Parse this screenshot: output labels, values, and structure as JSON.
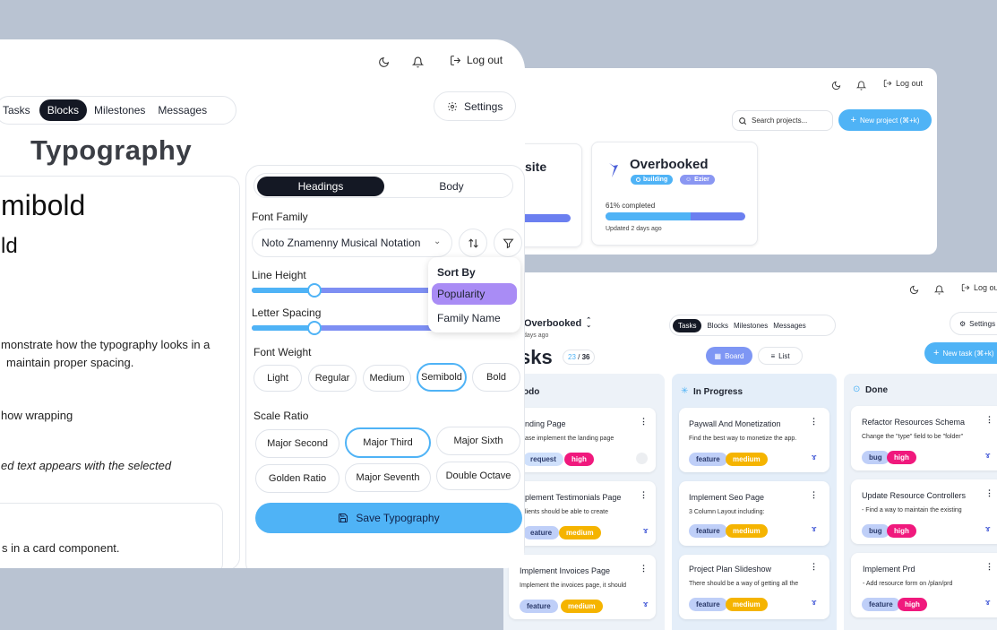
{
  "win3": {
    "header": {
      "logout": "Log out"
    },
    "search": {
      "placeholder": "Search projects..."
    },
    "new_project": "New project (⌘+k)",
    "project_partial_title": "site",
    "project": {
      "title": "Overbooked",
      "status": "building",
      "owner": "Ezier",
      "progress_label": "61% completed",
      "progress": 0.61,
      "updated": "Updated 2 days ago"
    }
  },
  "win2": {
    "header": {
      "logout": "Log out",
      "settings": "Settings"
    },
    "project_name": "Overbooked",
    "project_sub": "days ago",
    "tabs": [
      "Tasks",
      "Blocks",
      "Milestones",
      "Messages"
    ],
    "page_title": "sks",
    "count_done": "23",
    "count_total": "36",
    "views": {
      "board": "Board",
      "list": "List"
    },
    "new_task": "New task (⌘+k)",
    "columns": [
      {
        "title": "odo",
        "cards": [
          {
            "title": "nding Page",
            "desc": "ase implement the landing page",
            "tags": [
              "request",
              "high"
            ]
          },
          {
            "title": "plement Testimonials Page",
            "desc": "lients should be able to create",
            "tags": [
              "eature",
              "medium"
            ]
          },
          {
            "title": "Implement Invoices Page",
            "desc": "Implement the invoices page, it should",
            "tags": [
              "feature",
              "medium"
            ]
          }
        ]
      },
      {
        "title": "In Progress",
        "cards": [
          {
            "title": "Paywall And Monetization",
            "desc": "Find the best way to monetize the app.",
            "tags": [
              "feature",
              "medium"
            ]
          },
          {
            "title": "Implement Seo Page",
            "desc": "3 Column Layout including:",
            "tags": [
              "feature",
              "medium"
            ]
          },
          {
            "title": "Project Plan Slideshow",
            "desc": "There should be a way of getting all the",
            "tags": [
              "feature",
              "medium"
            ]
          }
        ]
      },
      {
        "title": "Done",
        "cards": [
          {
            "title": "Refactor Resources Schema",
            "desc": "Change the \"type\" field to be \"folder\"",
            "tags": [
              "bug",
              "high"
            ]
          },
          {
            "title": "Update Resource Controllers",
            "desc": "- Find a way to maintain the existing",
            "tags": [
              "bug",
              "high"
            ]
          },
          {
            "title": "Implement Prd",
            "desc": "- Add resource form on /plan/prd",
            "tags": [
              "feature",
              "high"
            ]
          }
        ]
      }
    ]
  },
  "win1": {
    "header": {
      "logout": "Log out",
      "settings": "Settings"
    },
    "tabs": [
      "Tasks",
      "Blocks",
      "Milestones",
      "Messages"
    ],
    "active_tab": "Blocks",
    "title": "Typography",
    "preview": {
      "line1": "mibold",
      "line2": "ld",
      "para1a": "monstrate how the typography looks in a",
      "para1b": "maintain proper spacing.",
      "para2": "how wrapping",
      "para3": "ed text appears with the selected",
      "para4": "s in a card component."
    },
    "seg": {
      "headings": "Headings",
      "body": "Body"
    },
    "font_family_label": "Font Family",
    "font_family_value": "Noto Znamenny Musical Notation",
    "line_height_label": "Line Height",
    "line_height_value": 0.33,
    "letter_spacing_label": "Letter Spacing",
    "letter_spacing_value": 0.33,
    "font_weight_label": "Font Weight",
    "weights": [
      "Light",
      "Regular",
      "Medium",
      "Semibold",
      "Bold"
    ],
    "selected_weight": "Semibold",
    "scale_label": "Scale Ratio",
    "scales": [
      "Major Second",
      "Major Third",
      "Major Sixth",
      "Golden Ratio",
      "Major Seventh",
      "Double Octave"
    ],
    "selected_scale": "Major Third",
    "save": "Save Typography",
    "sort_menu": {
      "title": "Sort By",
      "items": [
        "Popularity",
        "Family Name"
      ],
      "selected": "Popularity"
    }
  }
}
